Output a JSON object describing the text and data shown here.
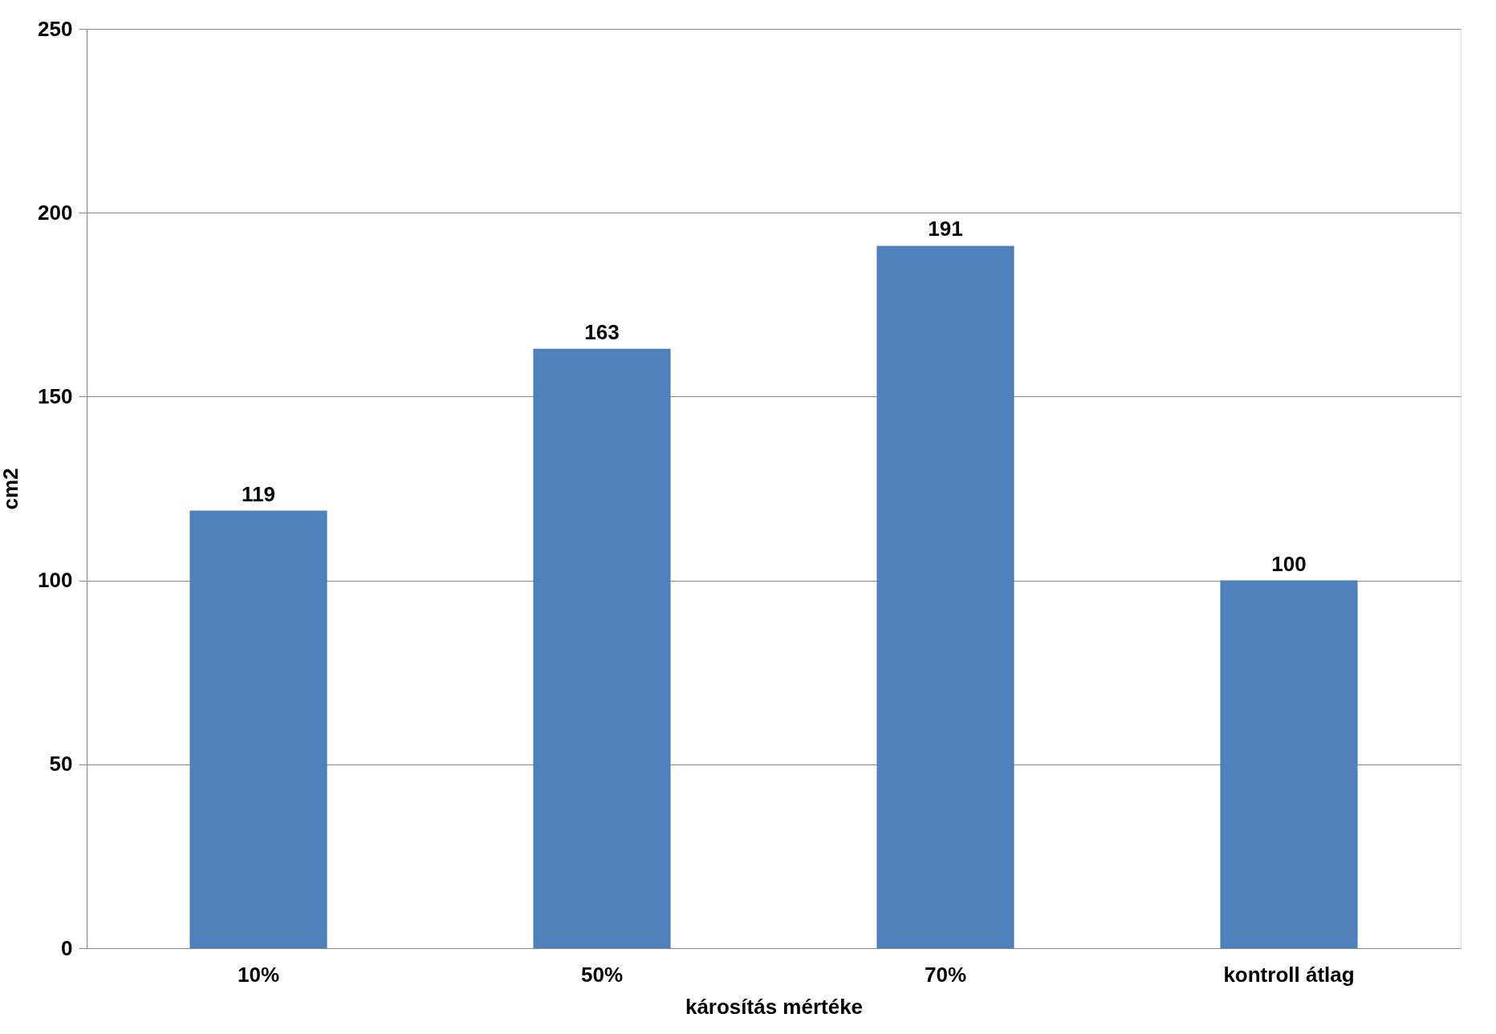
{
  "chart_data": {
    "type": "bar",
    "xlabel": "károsítás mértéke",
    "ylabel": "cm2",
    "categories": [
      "10%",
      "50%",
      "70%",
      "kontroll átlag"
    ],
    "values": [
      119,
      163,
      191,
      100
    ],
    "color": "#4f81bd",
    "ylim": [
      0,
      250
    ],
    "yticks": [
      0,
      50,
      100,
      150,
      200,
      250
    ],
    "grid": "y",
    "data_labels": true
  }
}
